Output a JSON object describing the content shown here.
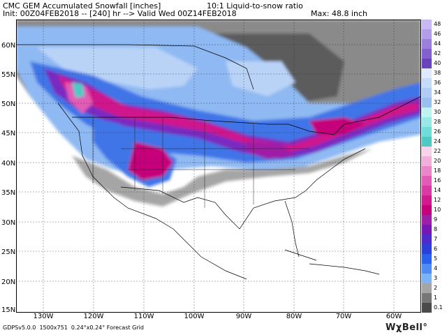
{
  "header": {
    "title": "CMC GEM Accumulated Snowfall [inches]",
    "init": "Init: 00Z04FEB2018 -- [240] hr --> Valid Wed 00Z14FEB2018",
    "ratio": "10:1 Liquid-to-snow ratio",
    "max": "Max: 48.8 inch"
  },
  "map": {
    "lat_labels": [
      "60N",
      "55N",
      "50N",
      "45N",
      "40N",
      "35N",
      "30N",
      "25N",
      "20N",
      "15N"
    ],
    "lon_labels": [
      "130W",
      "120W",
      "110W",
      "100W",
      "90W",
      "80W",
      "70W",
      "60W"
    ]
  },
  "colorbar": {
    "levels": [
      "48",
      "46",
      "44",
      "42",
      "40",
      "38",
      "36",
      "34",
      "32",
      "30",
      "28",
      "26",
      "24",
      "22",
      "20",
      "18",
      "16",
      "14",
      "12",
      "10",
      "9",
      "8",
      "7",
      "6",
      "5",
      "4",
      "3",
      "2",
      "1",
      "0.1"
    ],
    "colors": [
      "#c9b8f3",
      "#b29de8",
      "#9a7fdb",
      "#8360cd",
      "#6b42be",
      "#dfe9ff",
      "#c6dbfa",
      "#afcdf4",
      "#98bfee",
      "#bff3f1",
      "#98e9e5",
      "#6fdcd7",
      "#4ccbc6",
      "#f7d3ec",
      "#f1afdc",
      "#ea86c9",
      "#e25cb5",
      "#da3aa3",
      "#d01b8e",
      "#c6007a",
      "#9e1fa6",
      "#7717b3",
      "#4f2ac8",
      "#2a3fd8",
      "#2862ec",
      "#4e8bf5",
      "#7ab4f7",
      "#a5a5a5",
      "#777777",
      "#4a4a4a"
    ]
  },
  "footer": "GDPSv5.0.0  1500x751  0.24°x0.24° Forecast Grid",
  "brand": "WχBell°"
}
